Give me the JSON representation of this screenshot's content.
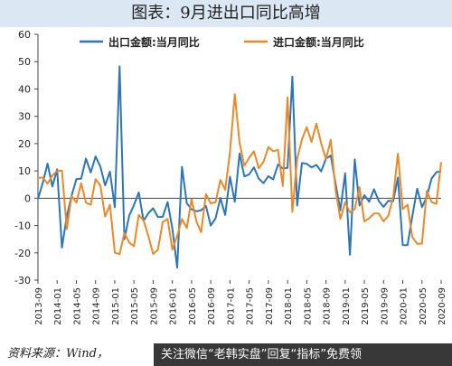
{
  "page": {
    "title": "图表：9月进出口同比高增",
    "source": "资料来源：Wind，",
    "overlay": "关注微信“老韩实盘”回复“指标”免费领"
  },
  "chart_data": {
    "type": "line",
    "ylim": [
      -30,
      60
    ],
    "yticks": [
      -30,
      -20,
      -10,
      0,
      10,
      20,
      30,
      40,
      50,
      60
    ],
    "x_tick_labels": [
      "2013-09",
      "2014-01",
      "2014-05",
      "2014-09",
      "2015-01",
      "2015-05",
      "2015-09",
      "2016-01",
      "2016-05",
      "2016-09",
      "2017-01",
      "2017-05",
      "2017-09",
      "2018-01",
      "2018-05",
      "2018-09",
      "2019-01",
      "2019-05",
      "2019-09",
      "2020-01",
      "2020-05",
      "2020-09"
    ],
    "x": [
      "2013-09",
      "2013-10",
      "2013-11",
      "2013-12",
      "2014-01",
      "2014-02",
      "2014-03",
      "2014-04",
      "2014-05",
      "2014-06",
      "2014-07",
      "2014-08",
      "2014-09",
      "2014-10",
      "2014-11",
      "2014-12",
      "2015-01",
      "2015-02",
      "2015-03",
      "2015-04",
      "2015-05",
      "2015-06",
      "2015-07",
      "2015-08",
      "2015-09",
      "2015-10",
      "2015-11",
      "2015-12",
      "2016-01",
      "2016-02",
      "2016-03",
      "2016-04",
      "2016-05",
      "2016-06",
      "2016-07",
      "2016-08",
      "2016-09",
      "2016-10",
      "2016-11",
      "2016-12",
      "2017-01",
      "2017-02",
      "2017-03",
      "2017-04",
      "2017-05",
      "2017-06",
      "2017-07",
      "2017-08",
      "2017-09",
      "2017-10",
      "2017-11",
      "2017-12",
      "2018-01",
      "2018-02",
      "2018-03",
      "2018-04",
      "2018-05",
      "2018-06",
      "2018-07",
      "2018-08",
      "2018-09",
      "2018-10",
      "2018-11",
      "2018-12",
      "2019-01",
      "2019-02",
      "2019-03",
      "2019-04",
      "2019-05",
      "2019-06",
      "2019-07",
      "2019-08",
      "2019-09",
      "2019-10",
      "2019-11",
      "2019-12",
      "2020-01",
      "2020-02",
      "2020-03",
      "2020-04",
      "2020-05",
      "2020-06",
      "2020-07",
      "2020-08",
      "2020-09"
    ],
    "series": [
      {
        "name": "出口金额:当月同比",
        "color": "#2e75b6",
        "values": [
          -0.3,
          5.6,
          12.7,
          4.3,
          10.6,
          -18.1,
          -6.6,
          0.9,
          7.0,
          7.2,
          14.5,
          9.4,
          15.3,
          11.6,
          4.7,
          9.7,
          -3.3,
          48.3,
          -15.0,
          -6.4,
          -2.5,
          2.1,
          -8.3,
          -5.5,
          -3.7,
          -6.9,
          -6.8,
          -1.4,
          -11.2,
          -25.4,
          11.5,
          -1.8,
          -4.1,
          -4.8,
          -4.4,
          -2.8,
          -10.0,
          -7.3,
          0.1,
          -6.1,
          7.9,
          -1.3,
          16.4,
          8.0,
          8.7,
          11.3,
          7.2,
          5.5,
          8.1,
          6.9,
          12.3,
          10.9,
          11.1,
          44.5,
          -2.7,
          12.9,
          12.6,
          11.3,
          12.2,
          9.8,
          14.5,
          15.6,
          5.4,
          -4.4,
          9.1,
          -20.7,
          14.2,
          -2.7,
          1.1,
          -1.3,
          3.3,
          -1.0,
          -3.2,
          -0.9,
          -1.1,
          7.6,
          -17.2,
          -17.2,
          -6.6,
          3.5,
          -3.3,
          0.5,
          7.2,
          9.5,
          9.9
        ]
      },
      {
        "name": "进口金额:当月同比",
        "color": "#e8892c",
        "values": [
          7.4,
          7.6,
          5.3,
          8.3,
          10.0,
          10.1,
          -11.3,
          0.8,
          -1.6,
          5.5,
          -1.6,
          -2.4,
          7.0,
          4.6,
          -6.7,
          -2.4,
          -19.9,
          -20.5,
          -12.7,
          -16.2,
          -17.6,
          -6.1,
          -8.1,
          -13.8,
          -20.4,
          -18.8,
          -8.7,
          -7.6,
          -18.8,
          -13.8,
          -7.6,
          -10.9,
          -0.4,
          -8.4,
          -12.5,
          1.5,
          -1.9,
          -1.4,
          6.7,
          3.1,
          16.7,
          38.1,
          20.3,
          11.9,
          14.8,
          17.2,
          11.0,
          13.3,
          18.7,
          17.2,
          17.7,
          4.5,
          36.9,
          -5.0,
          14.4,
          21.5,
          26.0,
          20.6,
          27.3,
          20.0,
          14.3,
          21.4,
          3.0,
          -7.6,
          -1.5,
          -5.2,
          -4.0,
          4.0,
          -8.5,
          -7.3,
          -5.6,
          -5.6,
          -8.5,
          -6.4,
          0.3,
          16.3,
          -4.0,
          -2.4,
          -14.2,
          -16.7,
          -16.6,
          2.7,
          -1.4,
          -2.1,
          13.2
        ]
      }
    ],
    "legend_position": "top"
  }
}
